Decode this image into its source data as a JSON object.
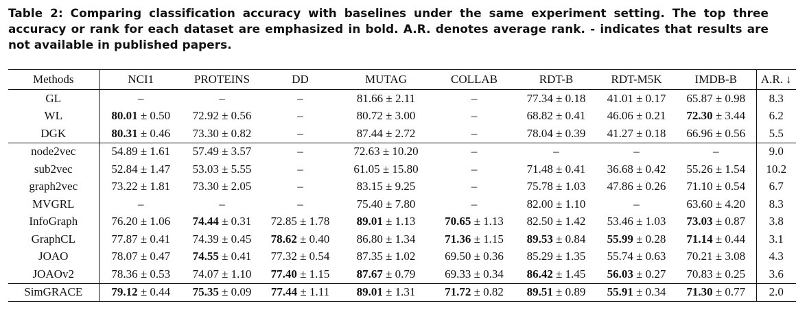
{
  "caption": "Table 2: Comparing classification accuracy with baselines under the same experiment setting. The top three accuracy or rank for each dataset are emphasized in bold. A.R. denotes average rank. - indicates that results are not available in published papers.",
  "headers": [
    "Methods",
    "NCI1",
    "PROTEINS",
    "DD",
    "MUTAG",
    "COLLAB",
    "RDT-B",
    "RDT-M5K",
    "IMDB-B",
    "A.R. ↓"
  ],
  "rows": [
    {
      "name": "GL",
      "group_start": true,
      "cells": [
        {
          "m": "–"
        },
        {
          "m": "–"
        },
        {
          "m": "–"
        },
        {
          "m": "81.66",
          "s": "± 2.11"
        },
        {
          "m": "–"
        },
        {
          "m": "77.34",
          "s": "± 0.18"
        },
        {
          "m": "41.01",
          "s": "± 0.17"
        },
        {
          "m": "65.87",
          "s": "± 0.98"
        }
      ],
      "ar": "8.3"
    },
    {
      "name": "WL",
      "cells": [
        {
          "m": "80.01",
          "s": "± 0.50",
          "b": true
        },
        {
          "m": "72.92",
          "s": "± 0.56"
        },
        {
          "m": "–"
        },
        {
          "m": "80.72",
          "s": "± 3.00"
        },
        {
          "m": "–"
        },
        {
          "m": "68.82",
          "s": "± 0.41"
        },
        {
          "m": "46.06",
          "s": "± 0.21"
        },
        {
          "m": "72.30",
          "s": "± 3.44",
          "b": true
        }
      ],
      "ar": "6.2"
    },
    {
      "name": "DGK",
      "cells": [
        {
          "m": "80.31",
          "s": "± 0.46",
          "b": true
        },
        {
          "m": "73.30",
          "s": "± 0.82"
        },
        {
          "m": "–"
        },
        {
          "m": "87.44",
          "s": "± 2.72"
        },
        {
          "m": "–"
        },
        {
          "m": "78.04",
          "s": "± 0.39"
        },
        {
          "m": "41.27",
          "s": "± 0.18"
        },
        {
          "m": "66.96",
          "s": "± 0.56"
        }
      ],
      "ar": "5.5"
    },
    {
      "name": "node2vec",
      "group_start": true,
      "cells": [
        {
          "m": "54.89",
          "s": "± 1.61"
        },
        {
          "m": "57.49",
          "s": "± 3.57"
        },
        {
          "m": "–"
        },
        {
          "m": "72.63",
          "s": "± 10.20"
        },
        {
          "m": "–"
        },
        {
          "m": "–"
        },
        {
          "m": "–"
        },
        {
          "m": "–"
        }
      ],
      "ar": "9.0"
    },
    {
      "name": "sub2vec",
      "cells": [
        {
          "m": "52.84",
          "s": "± 1.47"
        },
        {
          "m": "53.03",
          "s": "± 5.55"
        },
        {
          "m": "–"
        },
        {
          "m": "61.05",
          "s": "± 15.80"
        },
        {
          "m": "–"
        },
        {
          "m": "71.48",
          "s": "± 0.41"
        },
        {
          "m": "36.68",
          "s": "± 0.42"
        },
        {
          "m": "55.26",
          "s": "± 1.54"
        }
      ],
      "ar": "10.2"
    },
    {
      "name": "graph2vec",
      "cells": [
        {
          "m": "73.22",
          "s": "± 1.81"
        },
        {
          "m": "73.30",
          "s": "± 2.05"
        },
        {
          "m": "–"
        },
        {
          "m": "83.15",
          "s": "± 9.25"
        },
        {
          "m": "–"
        },
        {
          "m": "75.78",
          "s": "± 1.03"
        },
        {
          "m": "47.86",
          "s": "± 0.26"
        },
        {
          "m": "71.10",
          "s": "± 0.54"
        }
      ],
      "ar": "6.7"
    },
    {
      "name": "MVGRL",
      "cells": [
        {
          "m": "–"
        },
        {
          "m": "–"
        },
        {
          "m": "–"
        },
        {
          "m": "75.40",
          "s": "± 7.80"
        },
        {
          "m": "–"
        },
        {
          "m": "82.00",
          "s": "± 1.10"
        },
        {
          "m": "–"
        },
        {
          "m": "63.60",
          "s": "± 4.20"
        }
      ],
      "ar": "8.3"
    },
    {
      "name": "InfoGraph",
      "cells": [
        {
          "m": "76.20",
          "s": "± 1.06"
        },
        {
          "m": "74.44",
          "s": "± 0.31",
          "b": true
        },
        {
          "m": "72.85",
          "s": "± 1.78"
        },
        {
          "m": "89.01",
          "s": "± 1.13",
          "b": true
        },
        {
          "m": "70.65",
          "s": "± 1.13",
          "b": true
        },
        {
          "m": "82.50",
          "s": "± 1.42"
        },
        {
          "m": "53.46",
          "s": "± 1.03"
        },
        {
          "m": "73.03",
          "s": "± 0.87",
          "b": true
        }
      ],
      "ar": "3.8"
    },
    {
      "name": "GraphCL",
      "cells": [
        {
          "m": "77.87",
          "s": "± 0.41"
        },
        {
          "m": "74.39",
          "s": "± 0.45"
        },
        {
          "m": "78.62",
          "s": "± 0.40",
          "b": true
        },
        {
          "m": "86.80",
          "s": "± 1.34"
        },
        {
          "m": "71.36",
          "s": "± 1.15",
          "b": true
        },
        {
          "m": "89.53",
          "s": "± 0.84",
          "b": true
        },
        {
          "m": "55.99",
          "s": "± 0.28",
          "b": true
        },
        {
          "m": "71.14",
          "s": "± 0.44",
          "b": true
        }
      ],
      "ar": "3.1",
      "ar_b": true
    },
    {
      "name": "JOAO",
      "cells": [
        {
          "m": "78.07",
          "s": "± 0.47"
        },
        {
          "m": "74.55",
          "s": "± 0.41",
          "b": true
        },
        {
          "m": "77.32",
          "s": "± 0.54"
        },
        {
          "m": "87.35",
          "s": "± 1.02"
        },
        {
          "m": "69.50",
          "s": "± 0.36"
        },
        {
          "m": "85.29",
          "s": "± 1.35"
        },
        {
          "m": "55.74",
          "s": "± 0.63"
        },
        {
          "m": "70.21",
          "s": "± 3.08"
        }
      ],
      "ar": "4.3"
    },
    {
      "name": "JOAOv2",
      "cells": [
        {
          "m": "78.36",
          "s": "± 0.53"
        },
        {
          "m": "74.07",
          "s": "± 1.10"
        },
        {
          "m": "77.40",
          "s": "± 1.15",
          "b": true
        },
        {
          "m": "87.67",
          "s": "± 0.79",
          "b": true
        },
        {
          "m": "69.33",
          "s": "± 0.34"
        },
        {
          "m": "86.42",
          "s": "± 1.45",
          "b": true
        },
        {
          "m": "56.03",
          "s": "± 0.27",
          "b": true
        },
        {
          "m": "70.83",
          "s": "± 0.25"
        }
      ],
      "ar": "3.6",
      "ar_b": true
    },
    {
      "name": "SimGRACE",
      "final": true,
      "name_b": true,
      "cells": [
        {
          "m": "79.12",
          "s": "± 0.44",
          "b": true
        },
        {
          "m": "75.35",
          "s": "± 0.09",
          "b": true
        },
        {
          "m": "77.44",
          "s": "± 1.11",
          "b": true
        },
        {
          "m": "89.01",
          "s": "± 1.31",
          "b": true
        },
        {
          "m": "71.72",
          "s": "± 0.82",
          "b": true
        },
        {
          "m": "89.51",
          "s": "± 0.89",
          "b": true
        },
        {
          "m": "55.91",
          "s": "± 0.34",
          "b": true
        },
        {
          "m": "71.30",
          "s": "± 0.77",
          "b": true
        }
      ],
      "ar": "2.0",
      "ar_b": true
    }
  ]
}
